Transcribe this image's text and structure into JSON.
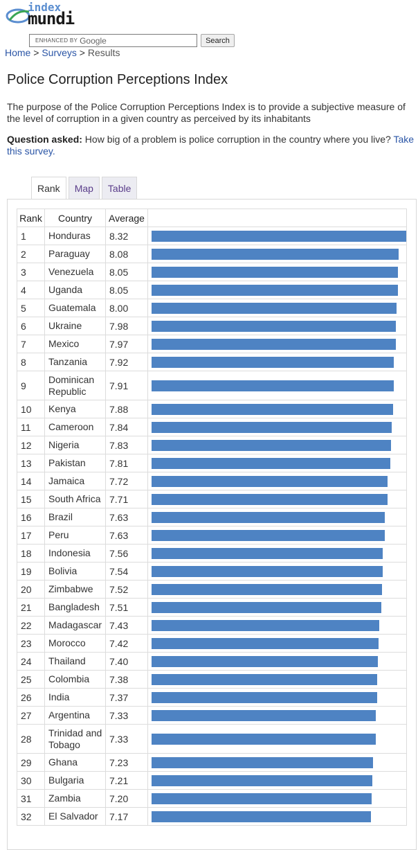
{
  "header": {
    "logo_line1": "index",
    "logo_line2": "mundi",
    "search_prefix": "ENHANCED BY",
    "search_brand": "Google",
    "search_button": "Search"
  },
  "breadcrumb": {
    "home": "Home",
    "sep1": " > ",
    "surveys": "Surveys",
    "sep2": " > ",
    "current": "Results"
  },
  "page": {
    "title": "Police Corruption Perceptions Index",
    "purpose": "The purpose of the Police Corruption Perceptions Index is to provide a subjective measure of the level of corruption in a given country as perceived by its inhabitants",
    "question_label": "Question asked:",
    "question_text": " How big of a problem is police corruption in the country where you live? ",
    "question_link": "Take this survey."
  },
  "tabs": [
    {
      "label": "Rank"
    },
    {
      "label": "Map"
    },
    {
      "label": "Table"
    }
  ],
  "table": {
    "headers": {
      "rank": "Rank",
      "country": "Country",
      "average": "Average"
    },
    "max_value": 8.32,
    "rows": [
      {
        "rank": "1",
        "country": "Honduras",
        "average": "8.32",
        "value": 8.32
      },
      {
        "rank": "2",
        "country": "Paraguay",
        "average": "8.08",
        "value": 8.08
      },
      {
        "rank": "3",
        "country": "Venezuela",
        "average": "8.05",
        "value": 8.05
      },
      {
        "rank": "4",
        "country": "Uganda",
        "average": "8.05",
        "value": 8.05
      },
      {
        "rank": "5",
        "country": "Guatemala",
        "average": "8.00",
        "value": 8.0
      },
      {
        "rank": "6",
        "country": "Ukraine",
        "average": "7.98",
        "value": 7.98
      },
      {
        "rank": "7",
        "country": "Mexico",
        "average": "7.97",
        "value": 7.97
      },
      {
        "rank": "8",
        "country": "Tanzania",
        "average": "7.92",
        "value": 7.92
      },
      {
        "rank": "9",
        "country": "Dominican Republic",
        "average": "7.91",
        "value": 7.91
      },
      {
        "rank": "10",
        "country": "Kenya",
        "average": "7.88",
        "value": 7.88
      },
      {
        "rank": "11",
        "country": "Cameroon",
        "average": "7.84",
        "value": 7.84
      },
      {
        "rank": "12",
        "country": "Nigeria",
        "average": "7.83",
        "value": 7.83
      },
      {
        "rank": "13",
        "country": "Pakistan",
        "average": "7.81",
        "value": 7.81
      },
      {
        "rank": "14",
        "country": "Jamaica",
        "average": "7.72",
        "value": 7.72
      },
      {
        "rank": "15",
        "country": "South Africa",
        "average": "7.71",
        "value": 7.71
      },
      {
        "rank": "16",
        "country": "Brazil",
        "average": "7.63",
        "value": 7.63
      },
      {
        "rank": "17",
        "country": "Peru",
        "average": "7.63",
        "value": 7.63
      },
      {
        "rank": "18",
        "country": "Indonesia",
        "average": "7.56",
        "value": 7.56
      },
      {
        "rank": "19",
        "country": "Bolivia",
        "average": "7.54",
        "value": 7.54
      },
      {
        "rank": "20",
        "country": "Zimbabwe",
        "average": "7.52",
        "value": 7.52
      },
      {
        "rank": "21",
        "country": "Bangladesh",
        "average": "7.51",
        "value": 7.51
      },
      {
        "rank": "22",
        "country": "Madagascar",
        "average": "7.43",
        "value": 7.43
      },
      {
        "rank": "23",
        "country": "Morocco",
        "average": "7.42",
        "value": 7.42
      },
      {
        "rank": "24",
        "country": "Thailand",
        "average": "7.40",
        "value": 7.4
      },
      {
        "rank": "25",
        "country": "Colombia",
        "average": "7.38",
        "value": 7.38
      },
      {
        "rank": "26",
        "country": "India",
        "average": "7.37",
        "value": 7.37
      },
      {
        "rank": "27",
        "country": "Argentina",
        "average": "7.33",
        "value": 7.33
      },
      {
        "rank": "28",
        "country": "Trinidad and Tobago",
        "average": "7.33",
        "value": 7.33
      },
      {
        "rank": "29",
        "country": "Ghana",
        "average": "7.23",
        "value": 7.23
      },
      {
        "rank": "30",
        "country": "Bulgaria",
        "average": "7.21",
        "value": 7.21
      },
      {
        "rank": "31",
        "country": "Zambia",
        "average": "7.20",
        "value": 7.2
      },
      {
        "rank": "32",
        "country": "El Salvador",
        "average": "7.17",
        "value": 7.17
      }
    ]
  },
  "colors": {
    "bar": "#4e83c3",
    "link": "#2a55a6",
    "tab_inactive_text": "#5a3d8a"
  }
}
